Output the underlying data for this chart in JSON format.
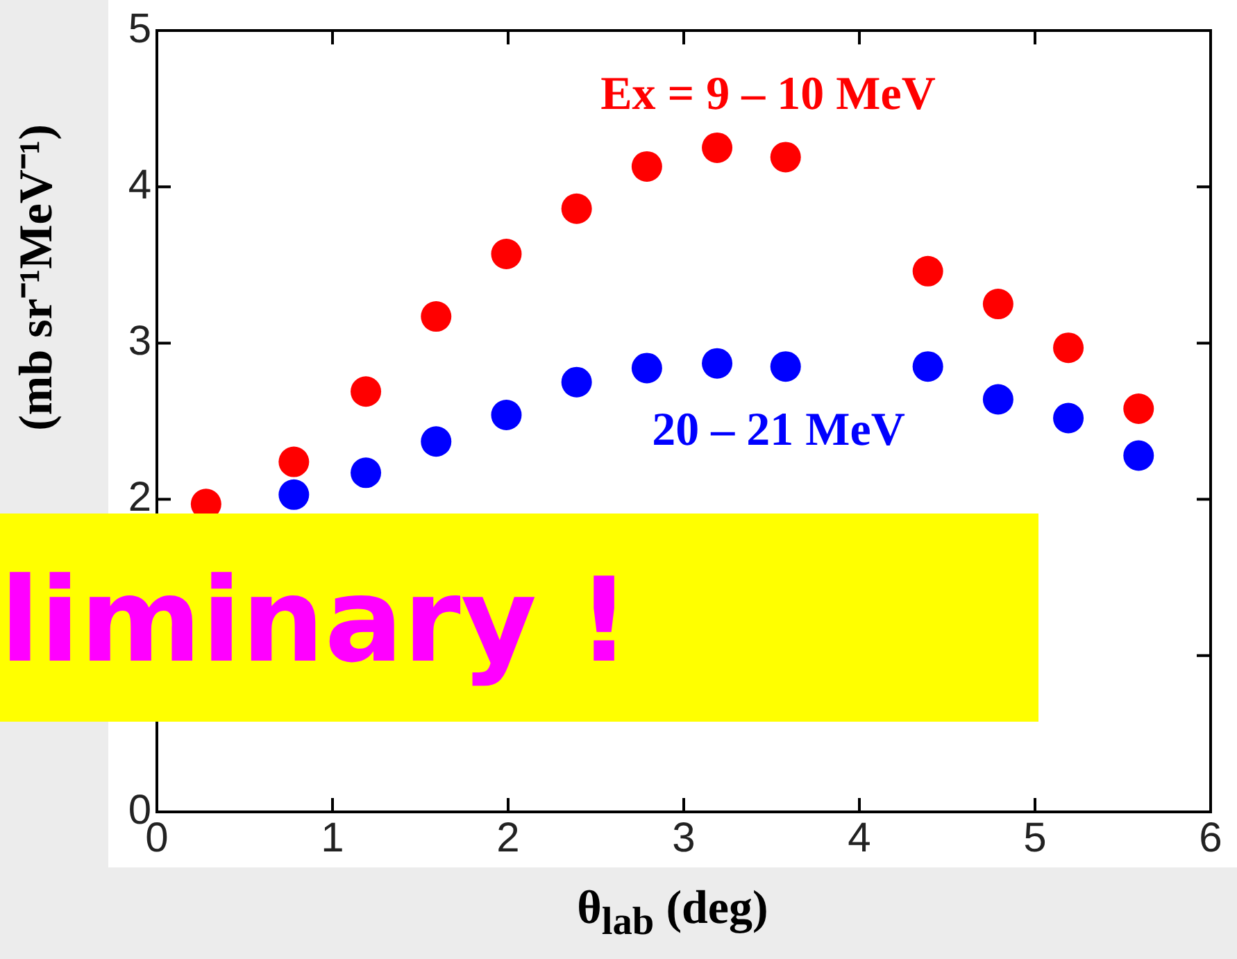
{
  "chart_data": {
    "type": "scatter",
    "xlabel": "θ$_{lab}$ (deg)",
    "ylabel": "(mb sr⁻¹MeV⁻¹)",
    "xlim": [
      0,
      6
    ],
    "xticks": [
      0,
      1,
      2,
      3,
      4,
      5,
      6
    ],
    "ylim": [
      0,
      5
    ],
    "yticks": [
      0,
      {
        "value": 1,
        "label": null
      },
      2,
      3,
      4,
      5
    ],
    "marker": "circle",
    "grid": false,
    "series": [
      {
        "name": "Ex = 9 – 10 MeV",
        "color": "#ff0000",
        "x": [
          0.28,
          0.78,
          1.19,
          1.59,
          1.99,
          2.39,
          2.79,
          3.19,
          3.58,
          4.39,
          4.79,
          5.19,
          5.59
        ],
        "values": [
          1.97,
          2.24,
          2.69,
          3.17,
          3.57,
          3.86,
          4.13,
          4.25,
          4.19,
          3.46,
          3.25,
          2.97,
          2.58
        ]
      },
      {
        "name": "20 – 21 MeV",
        "color": "#0000ff",
        "x": [
          0.78,
          1.19,
          1.59,
          1.99,
          2.39,
          2.79,
          3.19,
          3.58,
          4.39,
          4.79,
          5.19,
          5.59
        ],
        "values": [
          2.03,
          2.17,
          2.37,
          2.54,
          2.75,
          2.84,
          2.87,
          2.85,
          2.85,
          2.64,
          2.52,
          2.28
        ]
      }
    ],
    "annotations": [
      "liminary !"
    ]
  }
}
